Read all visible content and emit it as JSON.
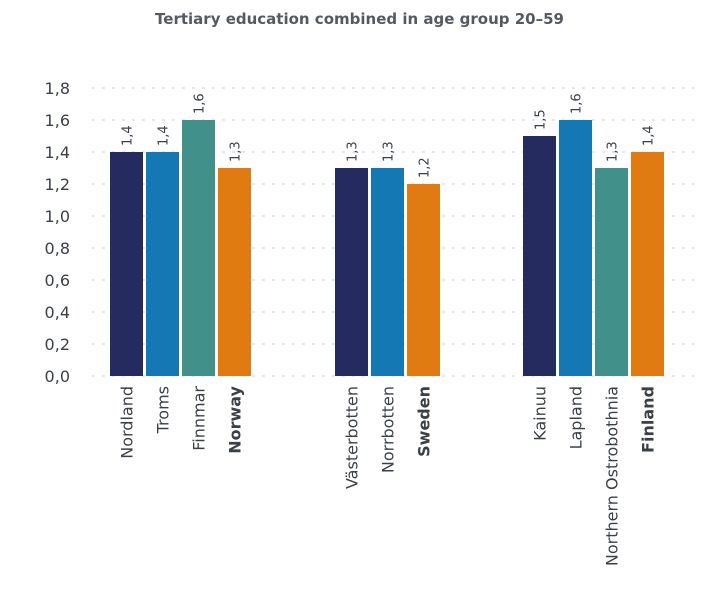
{
  "chart_data": {
    "type": "bar",
    "title": "Tertiary education combined in age group 20–59",
    "xlabel": "",
    "ylabel": "",
    "ylim": [
      0,
      1.8
    ],
    "yticks": [
      "0,0",
      "0,2",
      "0,4",
      "0,6",
      "0,8",
      "1,0",
      "1,2",
      "1,4",
      "1,6",
      "1,8"
    ],
    "grid": true,
    "groups": [
      {
        "bars": [
          {
            "category": "Nordland",
            "value": 1.4,
            "label": "1,4",
            "color": "#252b5e",
            "bold": false
          },
          {
            "category": "Troms",
            "value": 1.4,
            "label": "1,4",
            "color": "#1478b4",
            "bold": false
          },
          {
            "category": "Finnmar",
            "value": 1.6,
            "label": "1,6",
            "color": "#41918a",
            "bold": false
          },
          {
            "category": "Norway",
            "value": 1.3,
            "label": "1,3",
            "color": "#e07b12",
            "bold": true
          }
        ]
      },
      {
        "bars": [
          {
            "category": "Västerbotten",
            "value": 1.3,
            "label": "1,3",
            "color": "#252b5e",
            "bold": false
          },
          {
            "category": "Norrbotten",
            "value": 1.3,
            "label": "1,3",
            "color": "#1478b4",
            "bold": false
          },
          {
            "category": "Sweden",
            "value": 1.2,
            "label": "1,2",
            "color": "#e07b12",
            "bold": true
          }
        ]
      },
      {
        "bars": [
          {
            "category": "Kainuu",
            "value": 1.5,
            "label": "1,5",
            "color": "#252b5e",
            "bold": false
          },
          {
            "category": "Lapland",
            "value": 1.6,
            "label": "1,6",
            "color": "#1478b4",
            "bold": false
          },
          {
            "category": "Northern Ostrobothnia",
            "value": 1.3,
            "label": "1,3",
            "color": "#41918a",
            "bold": false
          },
          {
            "category": "Finland",
            "value": 1.4,
            "label": "1,4",
            "color": "#e07b12",
            "bold": true
          }
        ]
      }
    ]
  }
}
